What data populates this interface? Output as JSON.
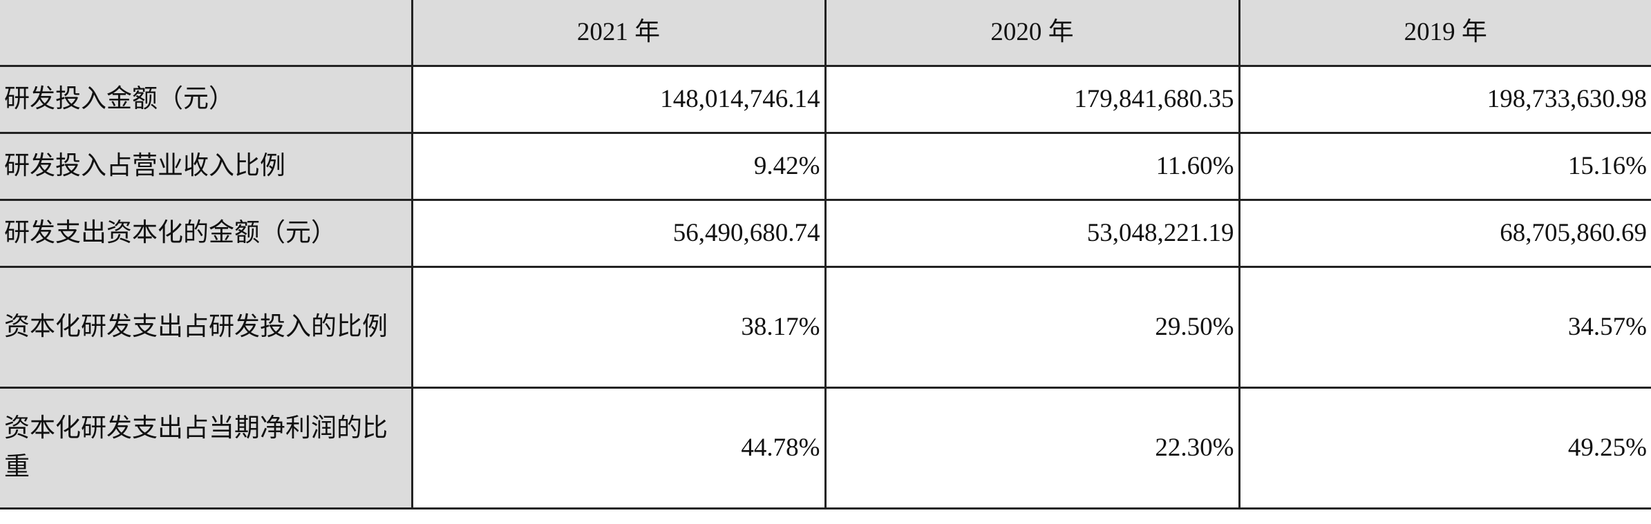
{
  "table": {
    "headers": [
      "",
      "2021 年",
      "2020 年",
      "2019 年"
    ],
    "rows": [
      {
        "label": "研发投入金额（元）",
        "values": [
          "148,014,746.14",
          "179,841,680.35",
          "198,733,630.98"
        ]
      },
      {
        "label": "研发投入占营业收入比例",
        "values": [
          "9.42%",
          "11.60%",
          "15.16%"
        ]
      },
      {
        "label": "研发支出资本化的金额（元）",
        "values": [
          "56,490,680.74",
          "53,048,221.19",
          "68,705,860.69"
        ]
      },
      {
        "label": "资本化研发支出占研发投入的比例",
        "values": [
          "38.17%",
          "29.50%",
          "34.57%"
        ]
      },
      {
        "label": "资本化研发支出占当期净利润的比重",
        "values": [
          "44.78%",
          "22.30%",
          "49.25%"
        ]
      }
    ]
  }
}
